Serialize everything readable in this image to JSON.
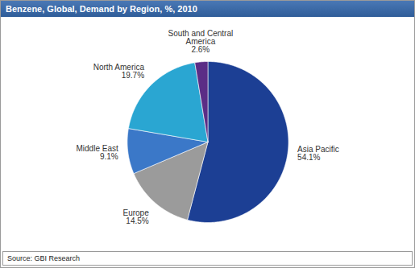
{
  "chart_data": {
    "type": "pie",
    "title": "Benzene, Global, Demand by Region, %, 2010",
    "caption": "Source: GBI Research",
    "categories": [
      "Asia Pacific",
      "Europe",
      "Middle East",
      "North America",
      "South and Central America"
    ],
    "values": [
      54.1,
      14.5,
      9.1,
      19.7,
      2.6
    ],
    "value_labels": [
      "54.1%",
      "14.5%",
      "9.1%",
      "19.7%",
      "2.6%"
    ],
    "colors": [
      "#1c3f94",
      "#9b9b9b",
      "#3b78c8",
      "#2aa6d2",
      "#5b2d86"
    ],
    "data_labels": true
  }
}
